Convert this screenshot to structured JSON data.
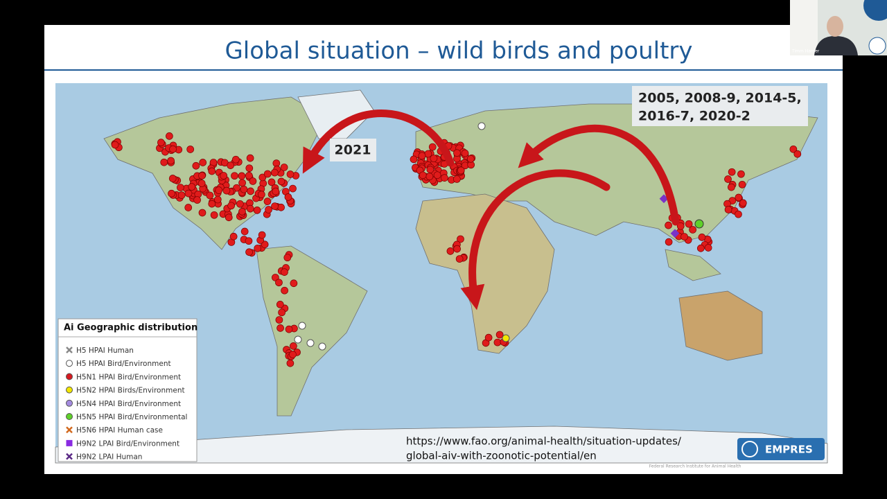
{
  "slide": {
    "title": "Global situation – wild birds and poultry",
    "annotations": {
      "years": [
        "2005, 2008-9, 2014-5,",
        "2016-7, 2020-2"
      ],
      "recent": "2021"
    },
    "legend": {
      "title": "Ai Geographic distribution",
      "items": [
        "H5 HPAI Human",
        "H5 HPAI Bird/Environment",
        "H5N1 HPAI Bird/Environment",
        "H5N2 HPAI Birds/Environment",
        "H5N4 HPAI Bird/Environment",
        "H5N5 HPAI Bird/Environmental",
        "H5N6 HPAI Human case",
        "H9N2 LPAI Bird/Environment",
        "H9N2 LPAI Human"
      ]
    },
    "source_url": [
      "https://www.fao.org/animal-health/situation-updates/",
      "global-aiv-with-zoonotic-potential/en"
    ],
    "logo": "EMPRES",
    "footer": "Federal Research Institute for Animal Health"
  },
  "video": {
    "participant": "Timm Harder"
  }
}
